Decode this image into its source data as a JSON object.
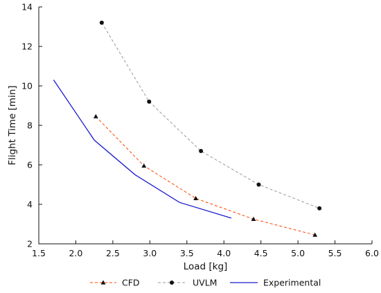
{
  "chart_data": {
    "type": "line",
    "xlabel": "Load [kg]",
    "ylabel": "Flight Time [min]",
    "xlim": [
      1.5,
      6.0
    ],
    "ylim": [
      2,
      14
    ],
    "xticks": [
      "1.5",
      "2.0",
      "2.5",
      "3.0",
      "3.5",
      "4.0",
      "4.5",
      "5.0",
      "5.5",
      "6.0"
    ],
    "yticks": [
      "2",
      "4",
      "6",
      "8",
      "10",
      "12",
      "14"
    ],
    "grid": false,
    "legend_position": "bottom",
    "series": [
      {
        "name": "CFD",
        "color": "#ff4400",
        "line_style": "dashed",
        "marker": "triangle",
        "x": [
          2.27,
          2.92,
          3.62,
          4.4,
          5.23
        ],
        "y": [
          8.45,
          5.95,
          4.3,
          3.25,
          2.45
        ]
      },
      {
        "name": "UVLM",
        "color": "#999999",
        "line_style": "dashed",
        "marker": "circle",
        "x": [
          2.35,
          2.99,
          3.69,
          4.47,
          5.29
        ],
        "y": [
          13.2,
          9.2,
          6.7,
          5.0,
          3.8
        ]
      },
      {
        "name": "Experimental",
        "color": "#1a1acc",
        "line_style": "solid",
        "marker": "none",
        "x": [
          1.7,
          2.25,
          2.8,
          3.4,
          4.1
        ],
        "y": [
          10.3,
          7.25,
          5.5,
          4.1,
          3.3
        ]
      }
    ]
  }
}
